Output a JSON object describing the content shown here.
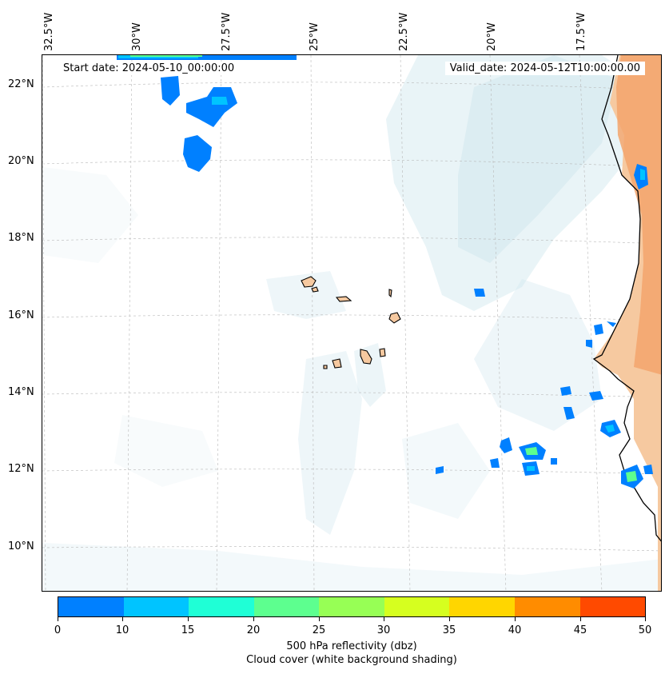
{
  "map": {
    "start_date": "Start date: 2024-05-10_00:00:00",
    "valid_date": "Valid_date: 2024-05-12T10:00:00.00",
    "lon_labels": [
      "32.5°W",
      "30°W",
      "27.5°W",
      "25°W",
      "22.5°W",
      "20°W",
      "17.5°W"
    ],
    "lat_labels": [
      "22°N",
      "20°N",
      "18°N",
      "16°N",
      "14°N",
      "12°N",
      "10°N"
    ]
  },
  "colorbar": {
    "ticks": [
      "0",
      "10",
      "15",
      "20",
      "25",
      "30",
      "35",
      "40",
      "45",
      "50"
    ],
    "colors": [
      "#0080ff",
      "#00c4ff",
      "#1fffd6",
      "#5dff8f",
      "#97ff55",
      "#d6ff1f",
      "#ffd600",
      "#ff8c00",
      "#ff4a00"
    ],
    "label": "500 hPa reflectivity (dbz)",
    "sublabel": "Cloud cover (white background shading)"
  },
  "colors": {
    "cloud": "#cfe6ee",
    "land": "#f6c9a0",
    "desert": "#f3a56c",
    "reflect_low": "#0080ff",
    "reflect_mid": "#00c4ff",
    "reflect_high": "#5dff8f"
  }
}
